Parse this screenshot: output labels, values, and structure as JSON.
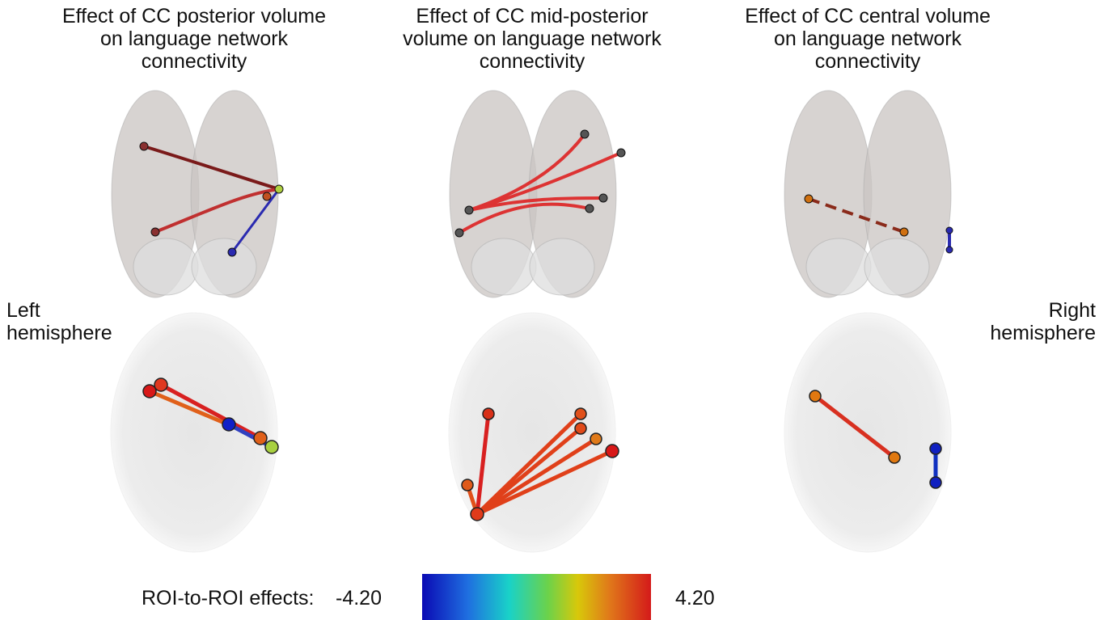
{
  "panels": [
    {
      "title": [
        "Effect of CC posterior volume",
        "on language network",
        "connectivity"
      ]
    },
    {
      "title": [
        "Effect of CC mid-posterior",
        "volume on language network",
        "connectivity"
      ]
    },
    {
      "title": [
        "Effect of CC central volume",
        "on language network",
        "connectivity"
      ]
    }
  ],
  "left_label": [
    "Left",
    "hemisphere"
  ],
  "right_label": [
    "Right",
    "hemisphere"
  ],
  "colorbar": {
    "label": "ROI-to-ROI effects:",
    "min": "-4.20",
    "max": "4.20"
  }
}
